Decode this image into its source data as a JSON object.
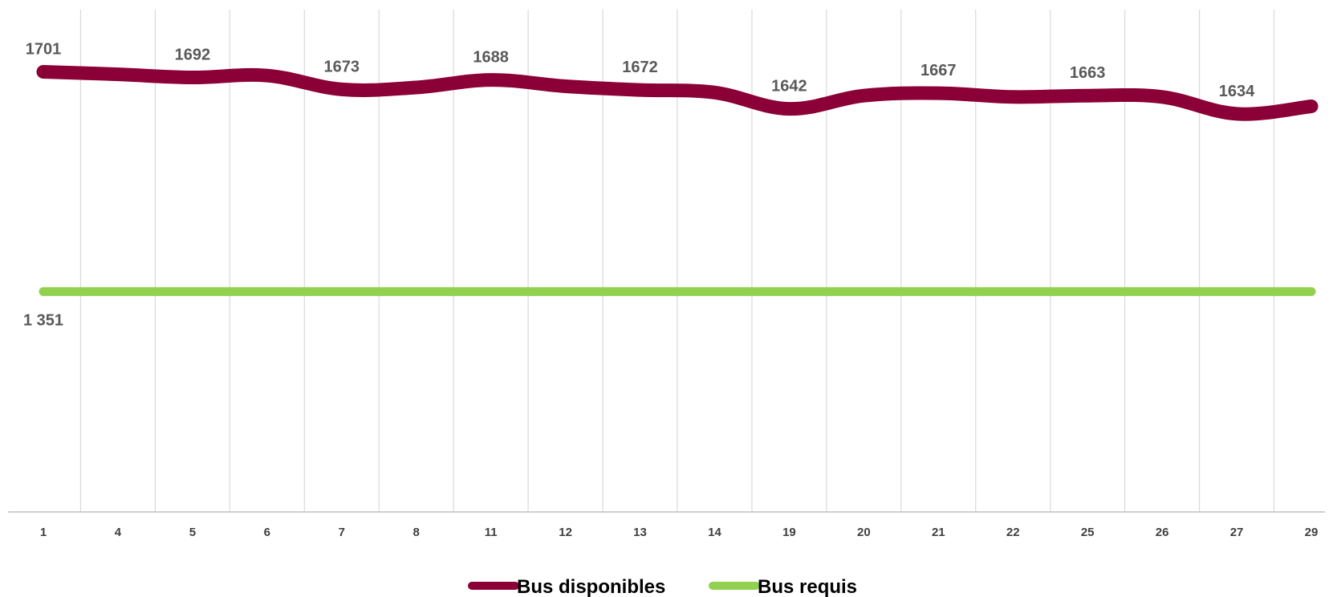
{
  "chart_data": {
    "type": "line",
    "categories": [
      "1",
      "4",
      "5",
      "6",
      "7",
      "8",
      "11",
      "12",
      "13",
      "14",
      "19",
      "20",
      "21",
      "22",
      "25",
      "26",
      "27",
      "29"
    ],
    "series": [
      {
        "name": "Bus disponibles",
        "color": "#8b0036",
        "values": [
          1701,
          1697,
          1692,
          1695,
          1673,
          1676,
          1688,
          1678,
          1672,
          1668,
          1642,
          1663,
          1667,
          1661,
          1663,
          1661,
          1634,
          1646
        ]
      },
      {
        "name": "Bus requis",
        "color": "#92d050",
        "values": [
          1351,
          1351,
          1351,
          1351,
          1351,
          1351,
          1351,
          1351,
          1351,
          1351,
          1351,
          1351,
          1351,
          1351,
          1351,
          1351,
          1351,
          1351
        ]
      }
    ],
    "data_labels": [
      {
        "series": 0,
        "index": 0,
        "text": "1701"
      },
      {
        "series": 0,
        "index": 2,
        "text": "1692"
      },
      {
        "series": 0,
        "index": 4,
        "text": "1673"
      },
      {
        "series": 0,
        "index": 6,
        "text": "1688"
      },
      {
        "series": 0,
        "index": 8,
        "text": "1672"
      },
      {
        "series": 0,
        "index": 10,
        "text": "1642"
      },
      {
        "series": 0,
        "index": 12,
        "text": "1667"
      },
      {
        "series": 0,
        "index": 14,
        "text": "1663"
      },
      {
        "series": 0,
        "index": 16,
        "text": "1634"
      },
      {
        "series": 1,
        "index": 0,
        "text": "1 351"
      }
    ],
    "ylim": [
      1000,
      1800
    ],
    "grid": "vertical",
    "legend": "bottom-center"
  }
}
